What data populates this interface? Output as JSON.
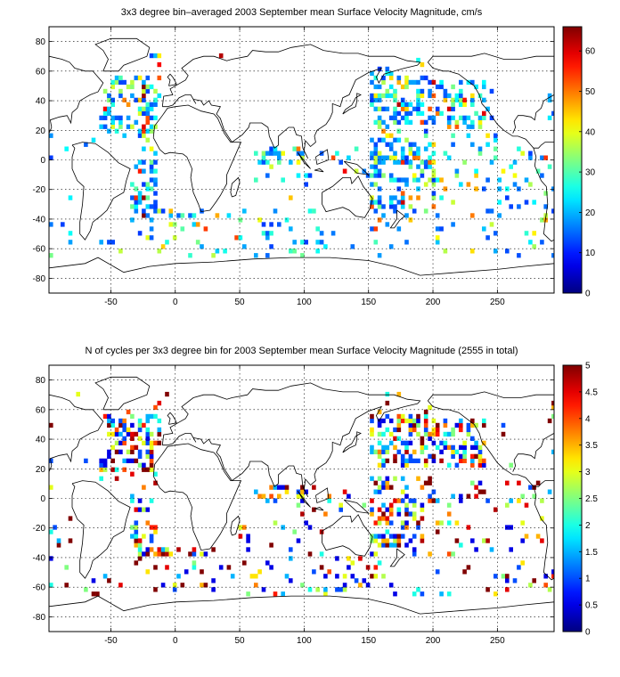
{
  "maps": [
    {
      "id": "top",
      "title": "3x3 degree bin–averaged 2003 September mean Surface Velocity Magnitude, cm/s",
      "colorbar": {
        "min": 0,
        "max": 66,
        "ticks": [
          "0",
          "10",
          "20",
          "30",
          "40",
          "50",
          "60"
        ],
        "tick_values": [
          0,
          10,
          20,
          30,
          40,
          50,
          60
        ]
      },
      "x_axis": {
        "range": [
          -98,
          294
        ],
        "ticks": [
          "-50",
          "0",
          "50",
          "100",
          "150",
          "200",
          "250"
        ],
        "tick_values": [
          -50,
          0,
          50,
          100,
          150,
          200,
          250
        ]
      },
      "y_axis": {
        "range": [
          -90,
          90
        ],
        "ticks": [
          "-80",
          "-60",
          "-40",
          "-20",
          "0",
          "20",
          "40",
          "60",
          "80"
        ],
        "tick_values": [
          -80,
          -60,
          -40,
          -20,
          0,
          20,
          40,
          60,
          80
        ]
      },
      "grid": "dotted",
      "colormap": "jet",
      "bin_size_deg": 3
    },
    {
      "id": "bottom",
      "title": "N of cycles per 3x3 degree bin for 2003 September mean Surface Velocity Magnitude (2555 in total)",
      "colorbar": {
        "min": 0,
        "max": 5,
        "ticks": [
          "0",
          "0.5",
          "1",
          "1.5",
          "2",
          "2.5",
          "3",
          "3.5",
          "4",
          "4.5",
          "5"
        ],
        "tick_values": [
          0,
          0.5,
          1,
          1.5,
          2,
          2.5,
          3,
          3.5,
          4,
          4.5,
          5
        ]
      },
      "x_axis": {
        "range": [
          -98,
          294
        ],
        "ticks": [
          "-50",
          "0",
          "50",
          "100",
          "150",
          "200",
          "250"
        ],
        "tick_values": [
          -50,
          0,
          50,
          100,
          150,
          200,
          250
        ]
      },
      "y_axis": {
        "range": [
          -90,
          90
        ],
        "ticks": [
          "-80",
          "-60",
          "-40",
          "-20",
          "0",
          "20",
          "40",
          "60",
          "80"
        ],
        "tick_values": [
          -80,
          -60,
          -40,
          -20,
          0,
          20,
          40,
          60,
          80
        ]
      },
      "grid": "dotted",
      "colormap": "jet",
      "bin_size_deg": 3
    }
  ],
  "colors": {
    "coastline": "#000000",
    "grid": "#000000",
    "background": "#ffffff"
  }
}
